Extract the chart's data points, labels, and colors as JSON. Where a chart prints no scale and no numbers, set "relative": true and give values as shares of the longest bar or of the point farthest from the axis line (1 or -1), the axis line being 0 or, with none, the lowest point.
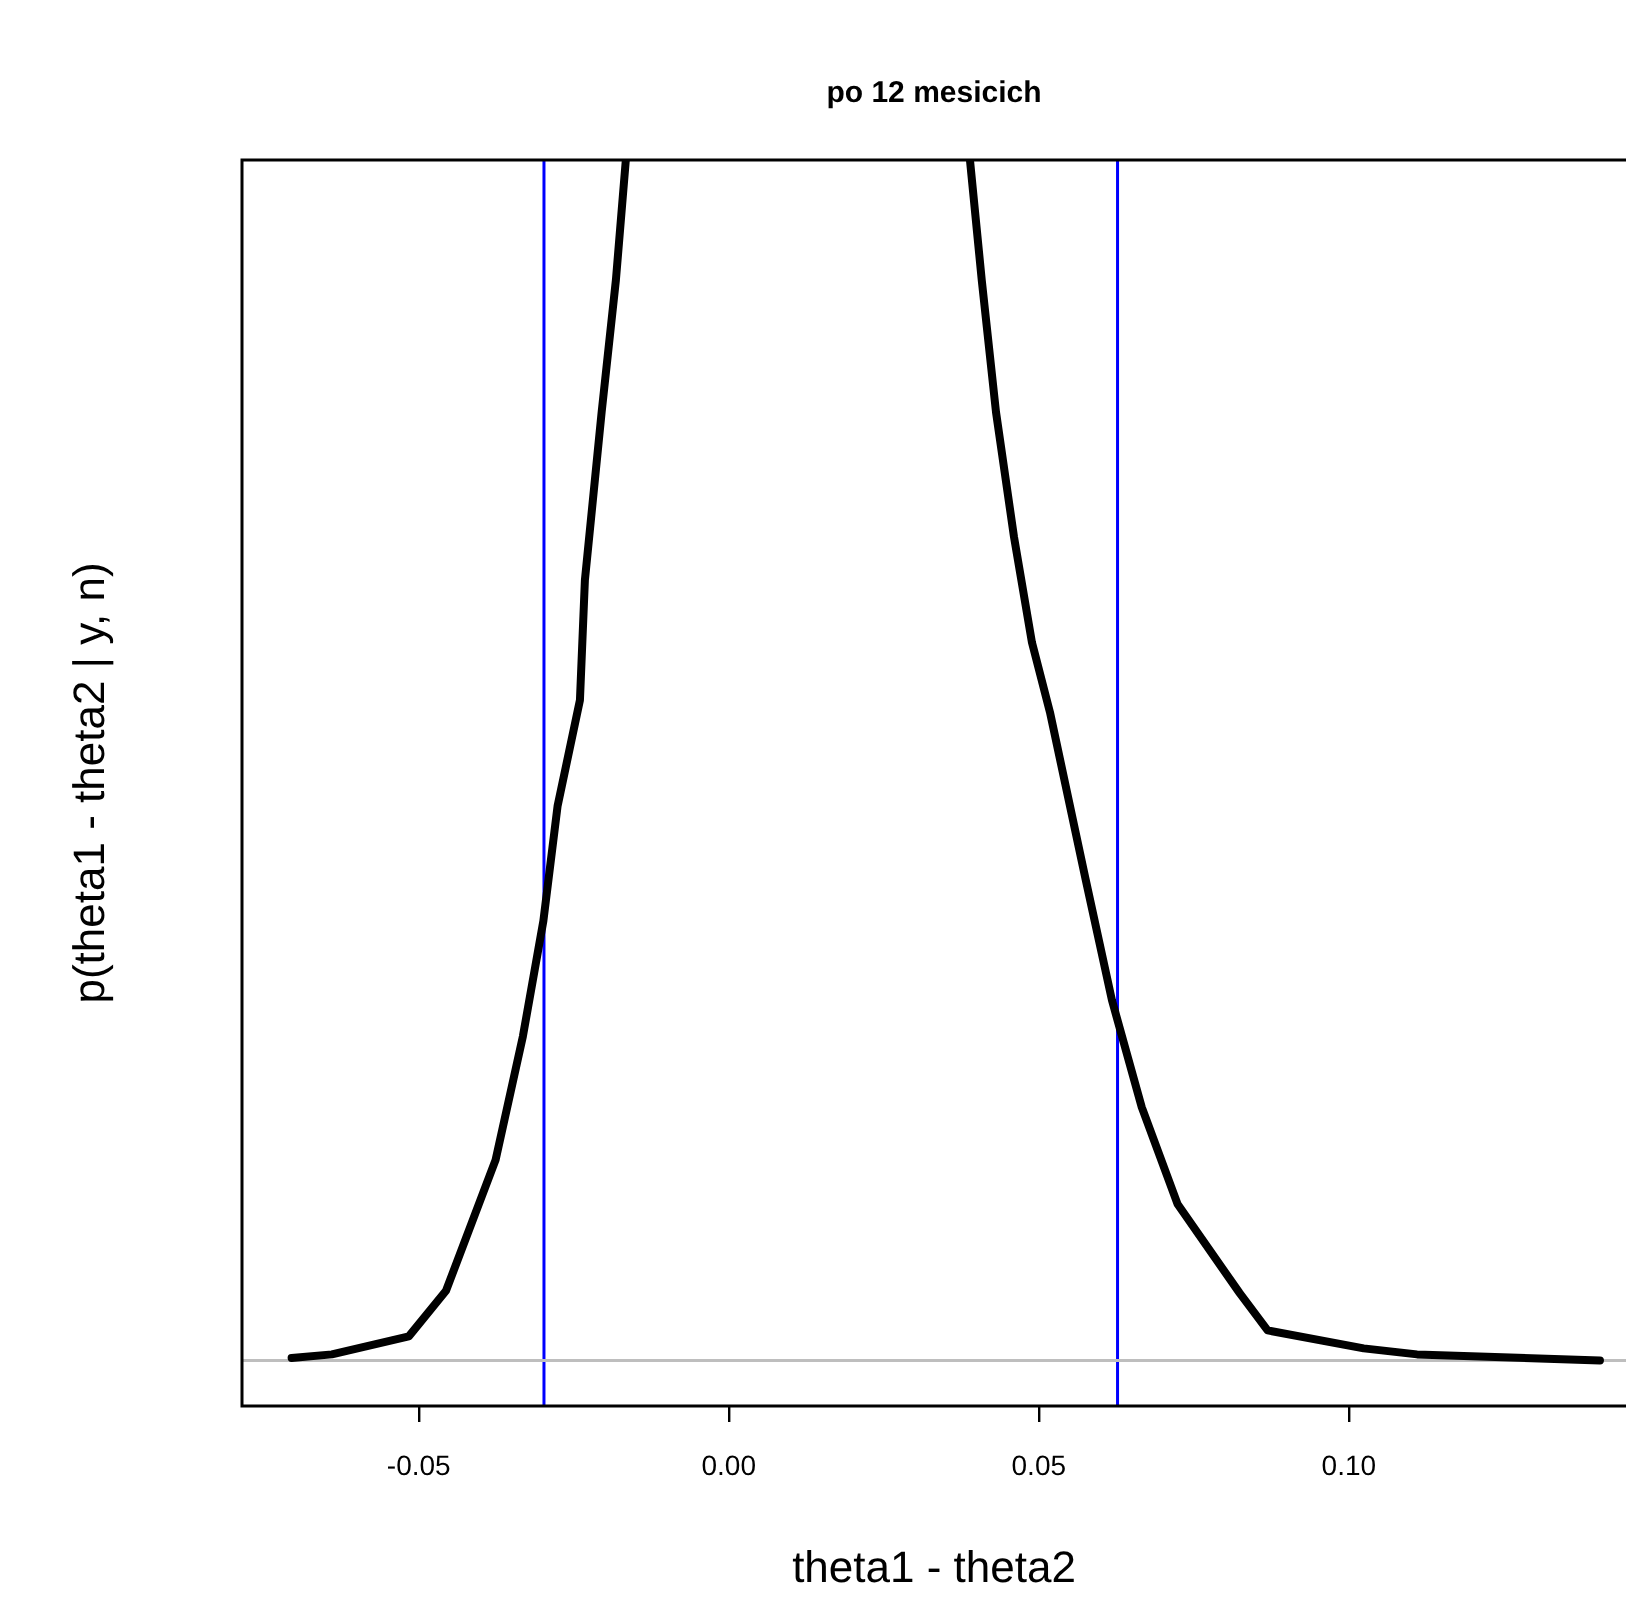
{
  "chart_data": {
    "type": "line",
    "title": "po 12 mesicich",
    "xlabel": "theta1 - theta2",
    "ylabel": "p(theta1 - theta2 | y, n)",
    "relative": true,
    "marker": "none",
    "line_style": "solid",
    "grid": false,
    "legend": false,
    "x": [
      -0.0705,
      -0.064,
      -0.0516,
      -0.0456,
      -0.0376,
      -0.0332,
      -0.0299,
      -0.0276,
      -0.024,
      -0.0232,
      -0.0205,
      -0.0182,
      -0.0166,
      0.01,
      0.0389,
      0.0408,
      0.0431,
      0.046,
      0.0489,
      0.0518,
      0.0575,
      0.0618,
      0.0666,
      0.0724,
      0.0824,
      0.0869,
      0.1024,
      0.111,
      0.1405
    ],
    "series": [
      {
        "color": "#000000",
        "values": [
          0.002,
          0.005,
          0.02,
          0.058,
          0.167,
          0.27,
          0.366,
          0.462,
          0.55,
          0.65,
          0.79,
          0.9,
          1.0,
          null,
          1.0,
          0.9,
          0.79,
          0.686,
          0.598,
          0.54,
          0.402,
          0.3,
          0.211,
          0.13,
          0.056,
          0.025,
          0.01,
          0.005,
          0
        ]
      }
    ],
    "xlim": [
      -0.0785,
      0.1447
    ],
    "xticks": [
      {
        "value": -0.05,
        "label": "-0.05"
      },
      {
        "value": 0,
        "label": "0.00"
      },
      {
        "value": 0.05,
        "label": "0.05"
      },
      {
        "value": 0.1,
        "label": "0.10"
      }
    ],
    "ref_lines": [
      {
        "axis": "x",
        "value": -0.0298,
        "color": "#0000ff"
      },
      {
        "axis": "x",
        "value": 0.0627,
        "color": "#0000ff"
      },
      {
        "axis": "y",
        "value": 0,
        "color": "#bebebe"
      }
    ]
  }
}
